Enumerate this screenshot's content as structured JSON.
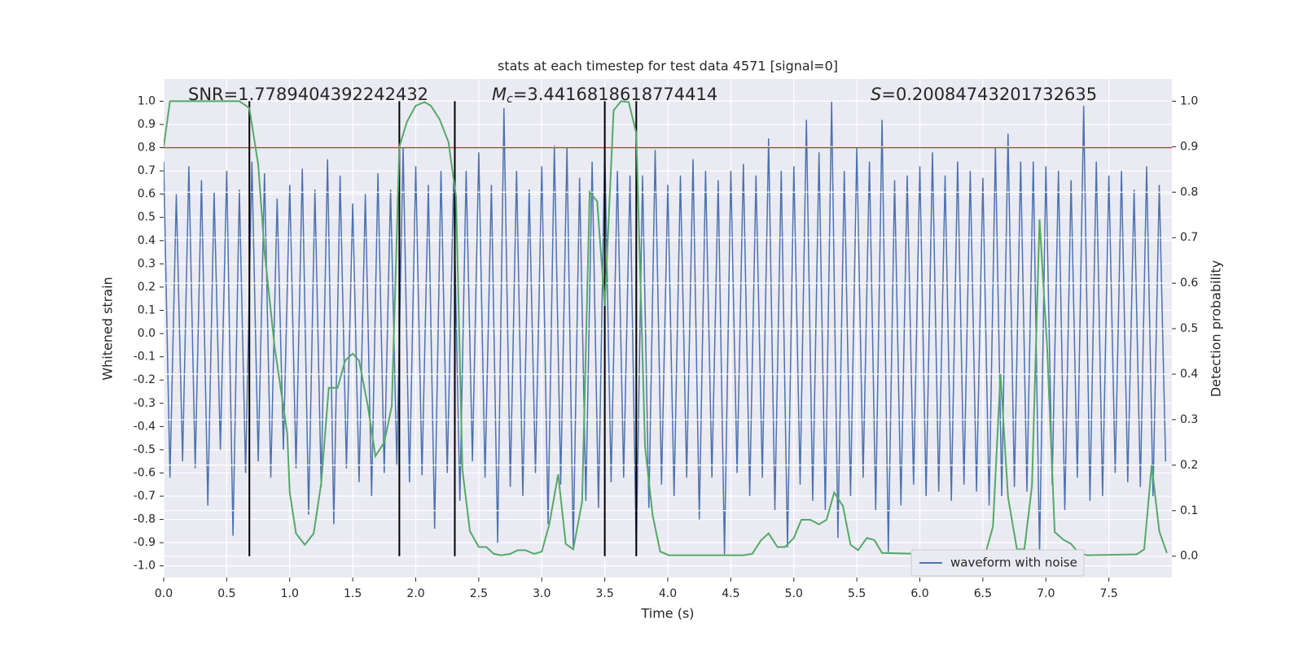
{
  "chart_data": {
    "type": "line",
    "title": "stats at each timestep for test data 4571 [signal=0]",
    "xlabel": "Time (s)",
    "ylabel": "Whitened strain",
    "y2label": "Detection probability",
    "annotations": [
      {
        "text": "SNR=1.7789404392242432"
      },
      {
        "symbol": "M",
        "subscript": "c",
        "text": "=3.4416818618774414"
      },
      {
        "symbol": "S",
        "text": "=0.20084743201732635"
      }
    ],
    "xlim": [
      0,
      8
    ],
    "ylim": [
      -1.05,
      1.096
    ],
    "y2lim": [
      -0.047,
      1.049
    ],
    "xticks": [
      {
        "value": 0,
        "label": "0.0"
      },
      0.5,
      {
        "value": 1,
        "label": "1.0"
      },
      1.5,
      {
        "value": 2,
        "label": "2.0"
      },
      2.5,
      {
        "value": 3,
        "label": "3.0"
      },
      3.5,
      {
        "value": 4,
        "label": "4.0"
      },
      4.5,
      {
        "value": 5,
        "label": "5.0"
      },
      5.5,
      {
        "value": 6,
        "label": "6.0"
      },
      6.5,
      {
        "value": 7,
        "label": "7.0"
      },
      7.5
    ],
    "yticks": [
      {
        "value": -1,
        "label": "-1.0"
      },
      -0.9,
      -0.8,
      -0.7,
      -0.6,
      -0.5,
      -0.4,
      -0.3,
      -0.2,
      -0.1,
      {
        "value": 0,
        "label": "0.0"
      },
      0.1,
      0.2,
      0.3,
      0.4,
      0.5,
      0.6,
      0.7,
      0.8,
      0.9,
      {
        "value": 1,
        "label": "1.0"
      }
    ],
    "y2ticks": [
      {
        "value": 0,
        "label": "0.0"
      },
      0.1,
      0.2,
      0.3,
      0.4,
      0.5,
      0.6,
      0.7,
      0.8,
      0.9,
      {
        "value": 1,
        "label": "1.0"
      }
    ],
    "grid": true,
    "legend": "lower right",
    "x": [
      0,
      0.05,
      0.1,
      0.15,
      0.2,
      0.25,
      0.3,
      0.35,
      0.4,
      0.45,
      0.5,
      0.55,
      0.6,
      0.65,
      0.7,
      0.75,
      0.8,
      0.85,
      0.9,
      0.95,
      1,
      1.05,
      1.1,
      1.15,
      1.2,
      1.25,
      1.3,
      1.35,
      1.4,
      1.45,
      1.5,
      1.55,
      1.6,
      1.65,
      1.7,
      1.75,
      1.8,
      1.85,
      1.9,
      1.95,
      2,
      2.05,
      2.1,
      2.15,
      2.2,
      2.25,
      2.3,
      2.35,
      2.4,
      2.45,
      2.5,
      2.55,
      2.6,
      2.65,
      2.7,
      2.75,
      2.8,
      2.85,
      2.9,
      2.95,
      3,
      3.05,
      3.1,
      3.15,
      3.2,
      3.25,
      3.3,
      3.35,
      3.4,
      3.45,
      3.5,
      3.55,
      3.6,
      3.65,
      3.7,
      3.75,
      3.8,
      3.85,
      3.9,
      3.95,
      4,
      4.05,
      4.1,
      4.15,
      4.2,
      4.25,
      4.3,
      4.35,
      4.4,
      4.45,
      4.5,
      4.55,
      4.6,
      4.65,
      4.7,
      4.75,
      4.8,
      4.85,
      4.9,
      4.95,
      5,
      5.05,
      5.1,
      5.15,
      5.2,
      5.25,
      5.3,
      5.35,
      5.4,
      5.45,
      5.5,
      5.55,
      5.6,
      5.65,
      5.7,
      5.75,
      5.8,
      5.85,
      5.9,
      5.95,
      6,
      6.05,
      6.1,
      6.15,
      6.2,
      6.25,
      6.3,
      6.35,
      6.4,
      6.45,
      6.5,
      6.55,
      6.6,
      6.65,
      6.7,
      6.75,
      6.8,
      6.85,
      6.9,
      6.95,
      7,
      7.05,
      7.1,
      7.15,
      7.2,
      7.25,
      7.3,
      7.35,
      7.4,
      7.45,
      7.5,
      7.55,
      7.6,
      7.65,
      7.7,
      7.75,
      7.8,
      7.85,
      7.9,
      7.95
    ],
    "series": [
      {
        "name": "waveform with noise",
        "color": "#4c72b0",
        "values": [
          0.74,
          -0.62,
          0.6,
          -0.55,
          0.72,
          -0.58,
          0.66,
          -0.74,
          0.61,
          -0.5,
          0.7,
          -0.87,
          0.62,
          -0.6,
          0.74,
          -0.55,
          0.69,
          -0.62,
          0.58,
          -0.5,
          0.64,
          -0.58,
          0.71,
          -0.78,
          0.62,
          -0.66,
          0.75,
          -0.82,
          0.68,
          -0.58,
          0.56,
          -0.64,
          0.6,
          -0.7,
          0.69,
          -0.6,
          0.62,
          -0.57,
          0.8,
          -0.64,
          0.72,
          -0.61,
          0.64,
          -0.84,
          0.7,
          -0.6,
          0.65,
          -0.72,
          0.7,
          -0.55,
          0.78,
          -0.62,
          0.64,
          -0.9,
          0.97,
          -0.66,
          0.7,
          -0.7,
          0.62,
          -0.6,
          0.72,
          -0.82,
          0.81,
          -0.65,
          0.8,
          -0.92,
          0.67,
          -0.72,
          0.74,
          -0.75,
          0.8,
          -0.64,
          0.7,
          -0.62,
          0.68,
          -0.94,
          0.68,
          -0.75,
          0.79,
          -0.65,
          0.64,
          -0.7,
          0.68,
          -0.62,
          0.75,
          -0.8,
          0.7,
          -0.62,
          0.66,
          -0.95,
          0.7,
          -0.6,
          0.73,
          -0.7,
          0.68,
          -0.62,
          0.84,
          -0.76,
          0.7,
          -0.92,
          0.72,
          -0.65,
          0.92,
          -0.72,
          0.78,
          -0.76,
          1.0,
          -0.88,
          0.7,
          -0.7,
          0.8,
          -0.62,
          0.74,
          -0.76,
          0.92,
          -0.94,
          0.66,
          -0.74,
          0.68,
          -0.65,
          0.72,
          -0.7,
          0.78,
          -0.68,
          0.68,
          -0.72,
          0.74,
          -0.65,
          0.7,
          -0.68,
          0.67,
          -0.74,
          0.8,
          -0.7,
          0.86,
          -0.66,
          0.74,
          -0.68,
          0.74,
          -0.95,
          0.72,
          -0.65,
          0.7,
          -0.76,
          0.66,
          -0.62,
          0.98,
          -0.72,
          0.74,
          -0.7,
          0.68,
          -0.6,
          0.7,
          -0.64,
          0.62,
          -0.66,
          0.72,
          -0.7,
          0.64,
          -0.55
        ]
      },
      {
        "color": "#55a868",
        "axis": "y2",
        "x": [
          0,
          0.05,
          0.6,
          0.68,
          0.75,
          0.8,
          0.88,
          0.98,
          1.0,
          1.05,
          1.12,
          1.19,
          1.25,
          1.31,
          1.38,
          1.44,
          1.5,
          1.55,
          1.62,
          1.68,
          1.75,
          1.81,
          1.87,
          1.93,
          2.0,
          2.07,
          2.12,
          2.19,
          2.26,
          2.32,
          2.37,
          2.43,
          2.5,
          2.56,
          2.62,
          2.68,
          2.75,
          2.81,
          2.87,
          2.94,
          3.0,
          3.06,
          3.13,
          3.19,
          3.25,
          3.32,
          3.38,
          3.44,
          3.5,
          3.57,
          3.63,
          3.69,
          3.75,
          3.82,
          3.88,
          3.94,
          4.01,
          4.6,
          4.67,
          4.74,
          4.8,
          4.87,
          4.93,
          5.0,
          5.06,
          5.13,
          5.2,
          5.26,
          5.32,
          5.39,
          5.45,
          5.51,
          5.58,
          5.64,
          5.7,
          6.45,
          6.52,
          6.58,
          6.64,
          6.7,
          6.77,
          6.83,
          6.89,
          6.95,
          7.01,
          7.07,
          7.14,
          7.2,
          7.26,
          7.33,
          7.72,
          7.78,
          7.84,
          7.9,
          7.96
        ],
        "values": [
          0.9,
          1.0,
          1.0,
          0.985,
          0.86,
          0.67,
          0.46,
          0.27,
          0.14,
          0.05,
          0.025,
          0.05,
          0.16,
          0.37,
          0.37,
          0.43,
          0.445,
          0.43,
          0.33,
          0.22,
          0.25,
          0.33,
          0.9,
          0.955,
          0.99,
          0.998,
          0.99,
          0.96,
          0.91,
          0.79,
          0.19,
          0.055,
          0.02,
          0.02,
          0.005,
          0.002,
          0.005,
          0.013,
          0.013,
          0.005,
          0.01,
          0.07,
          0.18,
          0.027,
          0.015,
          0.12,
          0.8,
          0.78,
          0.55,
          0.98,
          1.0,
          0.998,
          0.93,
          0.24,
          0.09,
          0.01,
          0.002,
          0.002,
          0.005,
          0.035,
          0.05,
          0.02,
          0.02,
          0.04,
          0.08,
          0.08,
          0.07,
          0.08,
          0.14,
          0.11,
          0.025,
          0.013,
          0.04,
          0.035,
          0.007,
          0.002,
          0.005,
          0.065,
          0.4,
          0.13,
          0.015,
          0.015,
          0.155,
          0.74,
          0.46,
          0.053,
          0.036,
          0.027,
          0.007,
          0.002,
          0.004,
          0.015,
          0.2,
          0.055,
          0.007
        ]
      }
    ],
    "hlines": [
      {
        "y": 0.8,
        "color": "#c03d3e"
      }
    ],
    "vlines": {
      "x": [
        0.68,
        1.87,
        2.31,
        3.5,
        3.75
      ],
      "ymin": 0,
      "ymax": 1,
      "axis": "y2",
      "color": "#000000"
    }
  }
}
